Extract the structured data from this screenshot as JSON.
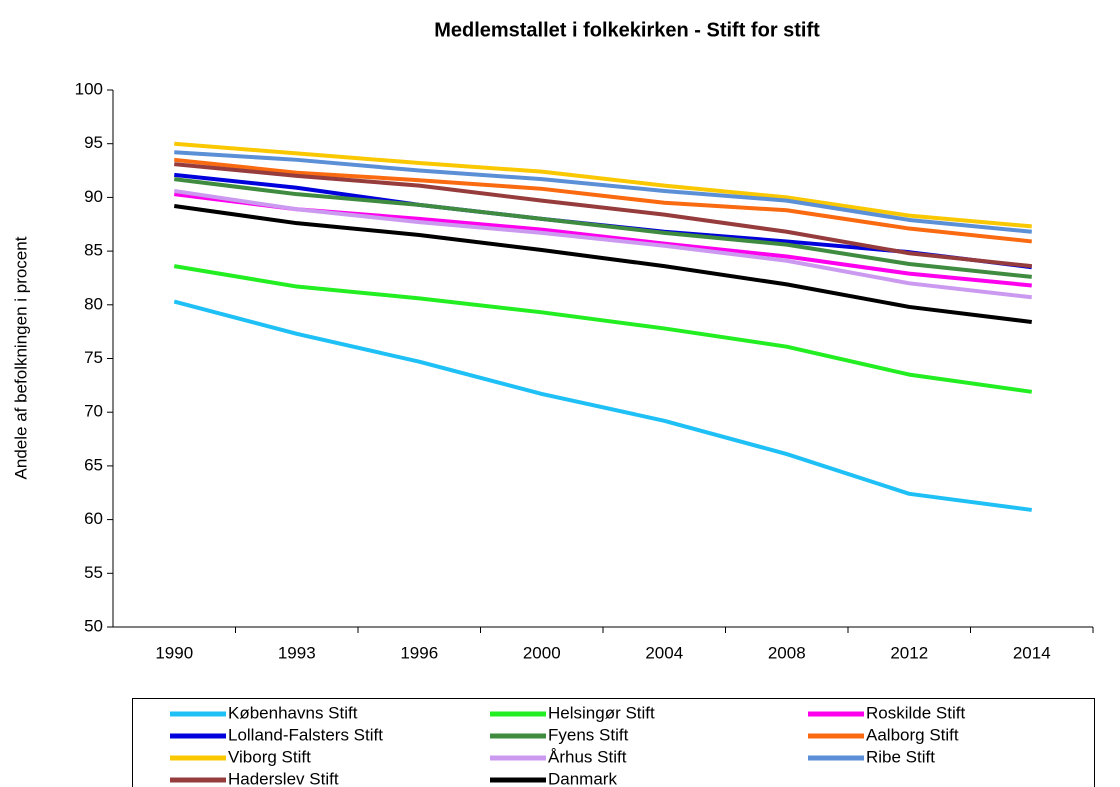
{
  "chart_data": {
    "type": "line",
    "title": "Medlemstallet i folkekirken - Stift for stift",
    "y_label": "Andele af befolkningen i procent",
    "categories": [
      "1990",
      "1993",
      "1996",
      "2000",
      "2004",
      "2008",
      "2012",
      "2014"
    ],
    "ylim": [
      50,
      100
    ],
    "yticks": [
      50,
      55,
      60,
      65,
      70,
      75,
      80,
      85,
      90,
      95,
      100
    ],
    "grid": false,
    "legend": "bottom",
    "series": [
      {
        "name": "Københavns Stift",
        "color": "#1ec0f5",
        "values": [
          80.3,
          77.3,
          74.7,
          71.7,
          69.2,
          66.1,
          62.4,
          60.9
        ]
      },
      {
        "name": "Helsingør Stift",
        "color": "#22ee22",
        "values": [
          83.6,
          81.7,
          80.6,
          79.3,
          77.8,
          76.1,
          73.5,
          71.9
        ]
      },
      {
        "name": "Roskilde Stift",
        "color": "#ff00ee",
        "values": [
          90.3,
          88.9,
          88.0,
          87.0,
          85.7,
          84.5,
          82.9,
          81.8
        ]
      },
      {
        "name": "Lolland-Falsters Stift",
        "color": "#0000dd",
        "values": [
          92.1,
          90.9,
          89.3,
          88.0,
          86.8,
          85.9,
          84.9,
          83.5
        ]
      },
      {
        "name": "Fyens Stift",
        "color": "#3f8b3f",
        "values": [
          91.7,
          90.3,
          89.3,
          88.0,
          86.7,
          85.6,
          83.8,
          82.6
        ]
      },
      {
        "name": "Aalborg Stift",
        "color": "#fa6a10",
        "values": [
          93.5,
          92.3,
          91.6,
          90.8,
          89.5,
          88.8,
          87.1,
          85.9
        ]
      },
      {
        "name": "Viborg Stift",
        "color": "#fac800",
        "values": [
          95.0,
          94.1,
          93.2,
          92.4,
          91.1,
          90.0,
          88.3,
          87.3
        ]
      },
      {
        "name": "Århus Stift",
        "color": "#cc99f0",
        "values": [
          90.6,
          88.9,
          87.7,
          86.7,
          85.5,
          84.1,
          82.0,
          80.7
        ]
      },
      {
        "name": "Ribe Stift",
        "color": "#5b8fd6",
        "values": [
          94.2,
          93.5,
          92.5,
          91.7,
          90.6,
          89.7,
          87.9,
          86.8
        ]
      },
      {
        "name": "Haderslev Stift",
        "color": "#963c3c",
        "values": [
          93.1,
          92.0,
          91.1,
          89.7,
          88.4,
          86.8,
          84.8,
          83.6
        ]
      },
      {
        "name": "Danmark",
        "color": "#000000",
        "values": [
          89.2,
          87.6,
          86.5,
          85.1,
          83.6,
          81.9,
          79.8,
          78.4
        ]
      }
    ]
  }
}
